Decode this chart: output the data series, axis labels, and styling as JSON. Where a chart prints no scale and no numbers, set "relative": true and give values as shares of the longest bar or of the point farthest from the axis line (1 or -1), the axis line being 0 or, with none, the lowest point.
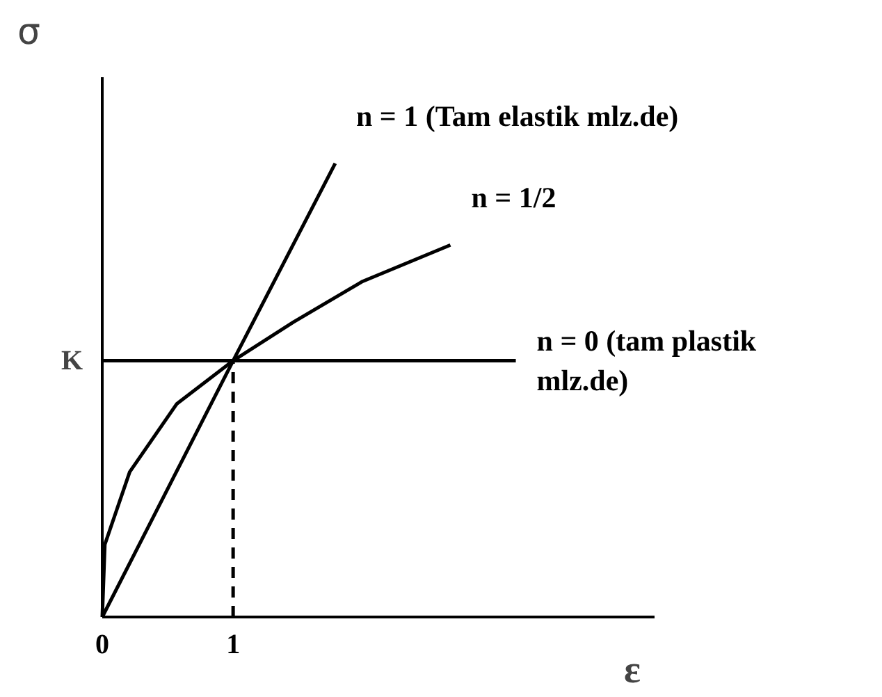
{
  "chart_data": {
    "type": "line",
    "xlabel": "ε",
    "ylabel": "σ",
    "relative": true,
    "xlim": [
      0,
      4.22
    ],
    "xticks": [
      0,
      1
    ],
    "tick_labels": "x",
    "annotations": [
      {
        "text": "K",
        "x": 0,
        "y": 0.565
      }
    ],
    "series": [
      {
        "name": "n = 1 (Tam elastik mlz.de)",
        "color": "#000000",
        "x": [
          0,
          1,
          1.78
        ],
        "values": [
          0,
          0.565,
          1
        ]
      },
      {
        "name": "n = 1/2",
        "color": "#000000",
        "x": [
          0,
          0.02,
          0.21,
          0.57,
          1,
          1.46,
          1.99,
          2.66
        ],
        "values": [
          0,
          0.16,
          0.32,
          0.47,
          0.565,
          0.65,
          0.74,
          0.82
        ]
      },
      {
        "name": "n = 0 (tam plastik mlz.de)",
        "color": "#000000",
        "x": [
          0,
          3.16
        ],
        "values": [
          0.565,
          0.565
        ]
      },
      {
        "color": "#000000",
        "x": [
          1,
          1
        ],
        "values": [
          0,
          0.565
        ],
        "line_style": "dashed"
      }
    ]
  }
}
